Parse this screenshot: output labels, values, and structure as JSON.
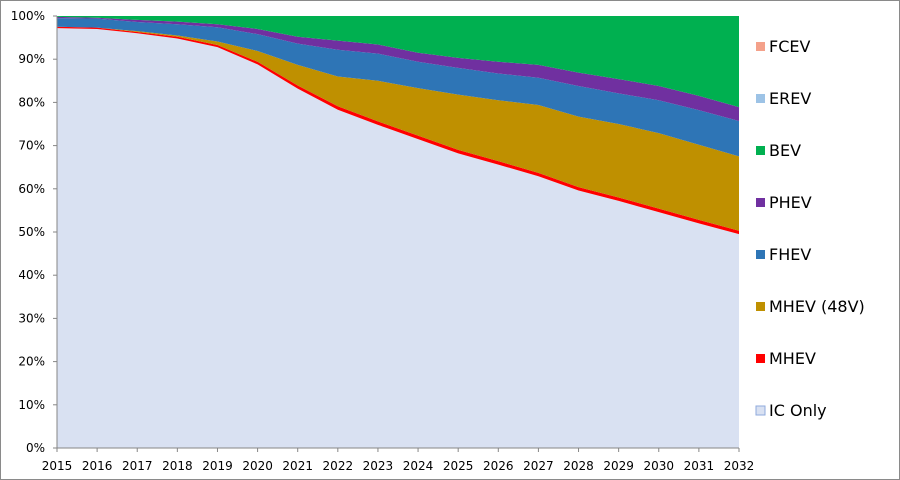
{
  "chart_data": {
    "type": "area",
    "stacked_percent": true,
    "x": [
      "2015",
      "2016",
      "2017",
      "2018",
      "2019",
      "2020",
      "2021",
      "2022",
      "2023",
      "2024",
      "2025",
      "2026",
      "2027",
      "2028",
      "2029",
      "2030",
      "2031",
      "2032"
    ],
    "ylim": [
      0,
      100
    ],
    "yticks": [
      "0%",
      "10%",
      "20%",
      "30%",
      "40%",
      "50%",
      "60%",
      "70%",
      "80%",
      "90%",
      "100%"
    ],
    "grid": false,
    "legend_position": "right",
    "series": [
      {
        "name": "IC Only",
        "color": "#d9e1f2",
        "values": [
          97.2,
          97.0,
          96.0,
          94.8,
          92.8,
          88.8,
          83.2,
          78.3,
          74.8,
          71.5,
          68.2,
          65.6,
          62.9,
          59.6,
          57.2,
          54.6,
          52.0,
          49.5
        ]
      },
      {
        "name": "MHEV",
        "color": "#ff0000",
        "values": [
          0.3,
          0.3,
          0.3,
          0.4,
          0.5,
          0.6,
          0.7,
          0.8,
          0.8,
          0.8,
          0.8,
          0.8,
          0.8,
          0.8,
          0.8,
          0.8,
          0.8,
          0.8
        ]
      },
      {
        "name": "MHEV (48V)",
        "color": "#bf9000",
        "values": [
          0.0,
          0.0,
          0.2,
          0.3,
          0.8,
          2.5,
          4.8,
          6.9,
          9.4,
          11.0,
          12.8,
          14.1,
          15.7,
          16.3,
          17.0,
          17.5,
          17.4,
          17.2
        ]
      },
      {
        "name": "FHEV",
        "color": "#2e75b6",
        "values": [
          2.0,
          2.1,
          2.1,
          2.6,
          3.3,
          3.9,
          4.9,
          6.2,
          6.3,
          6.1,
          6.2,
          6.2,
          6.3,
          7.1,
          7.1,
          7.6,
          8.0,
          8.2
        ]
      },
      {
        "name": "PHEV",
        "color": "#7030a0",
        "values": [
          0.3,
          0.2,
          0.5,
          0.6,
          0.7,
          1.2,
          1.6,
          2.1,
          2.1,
          2.1,
          2.3,
          2.7,
          3.0,
          3.1,
          3.3,
          3.3,
          3.3,
          3.2
        ]
      },
      {
        "name": "BEV",
        "color": "#00b050",
        "values": [
          0.2,
          0.4,
          0.9,
          1.3,
          1.9,
          3.0,
          4.8,
          5.7,
          6.6,
          8.5,
          9.7,
          10.6,
          11.3,
          13.1,
          14.6,
          16.2,
          18.5,
          21.1
        ]
      },
      {
        "name": "EREV",
        "color": "#9dc3e6",
        "values": [
          0,
          0,
          0,
          0,
          0,
          0,
          0,
          0,
          0,
          0,
          0,
          0,
          0,
          0,
          0,
          0,
          0,
          0
        ]
      },
      {
        "name": "FCEV",
        "color": "#f4a18a",
        "values": [
          0,
          0,
          0,
          0,
          0,
          0,
          0,
          0,
          0,
          0,
          0,
          0,
          0,
          0,
          0,
          0,
          0,
          0
        ]
      }
    ],
    "legend_order": [
      "FCEV",
      "EREV",
      "BEV",
      "PHEV",
      "FHEV",
      "MHEV (48V)",
      "MHEV",
      "IC Only"
    ]
  }
}
